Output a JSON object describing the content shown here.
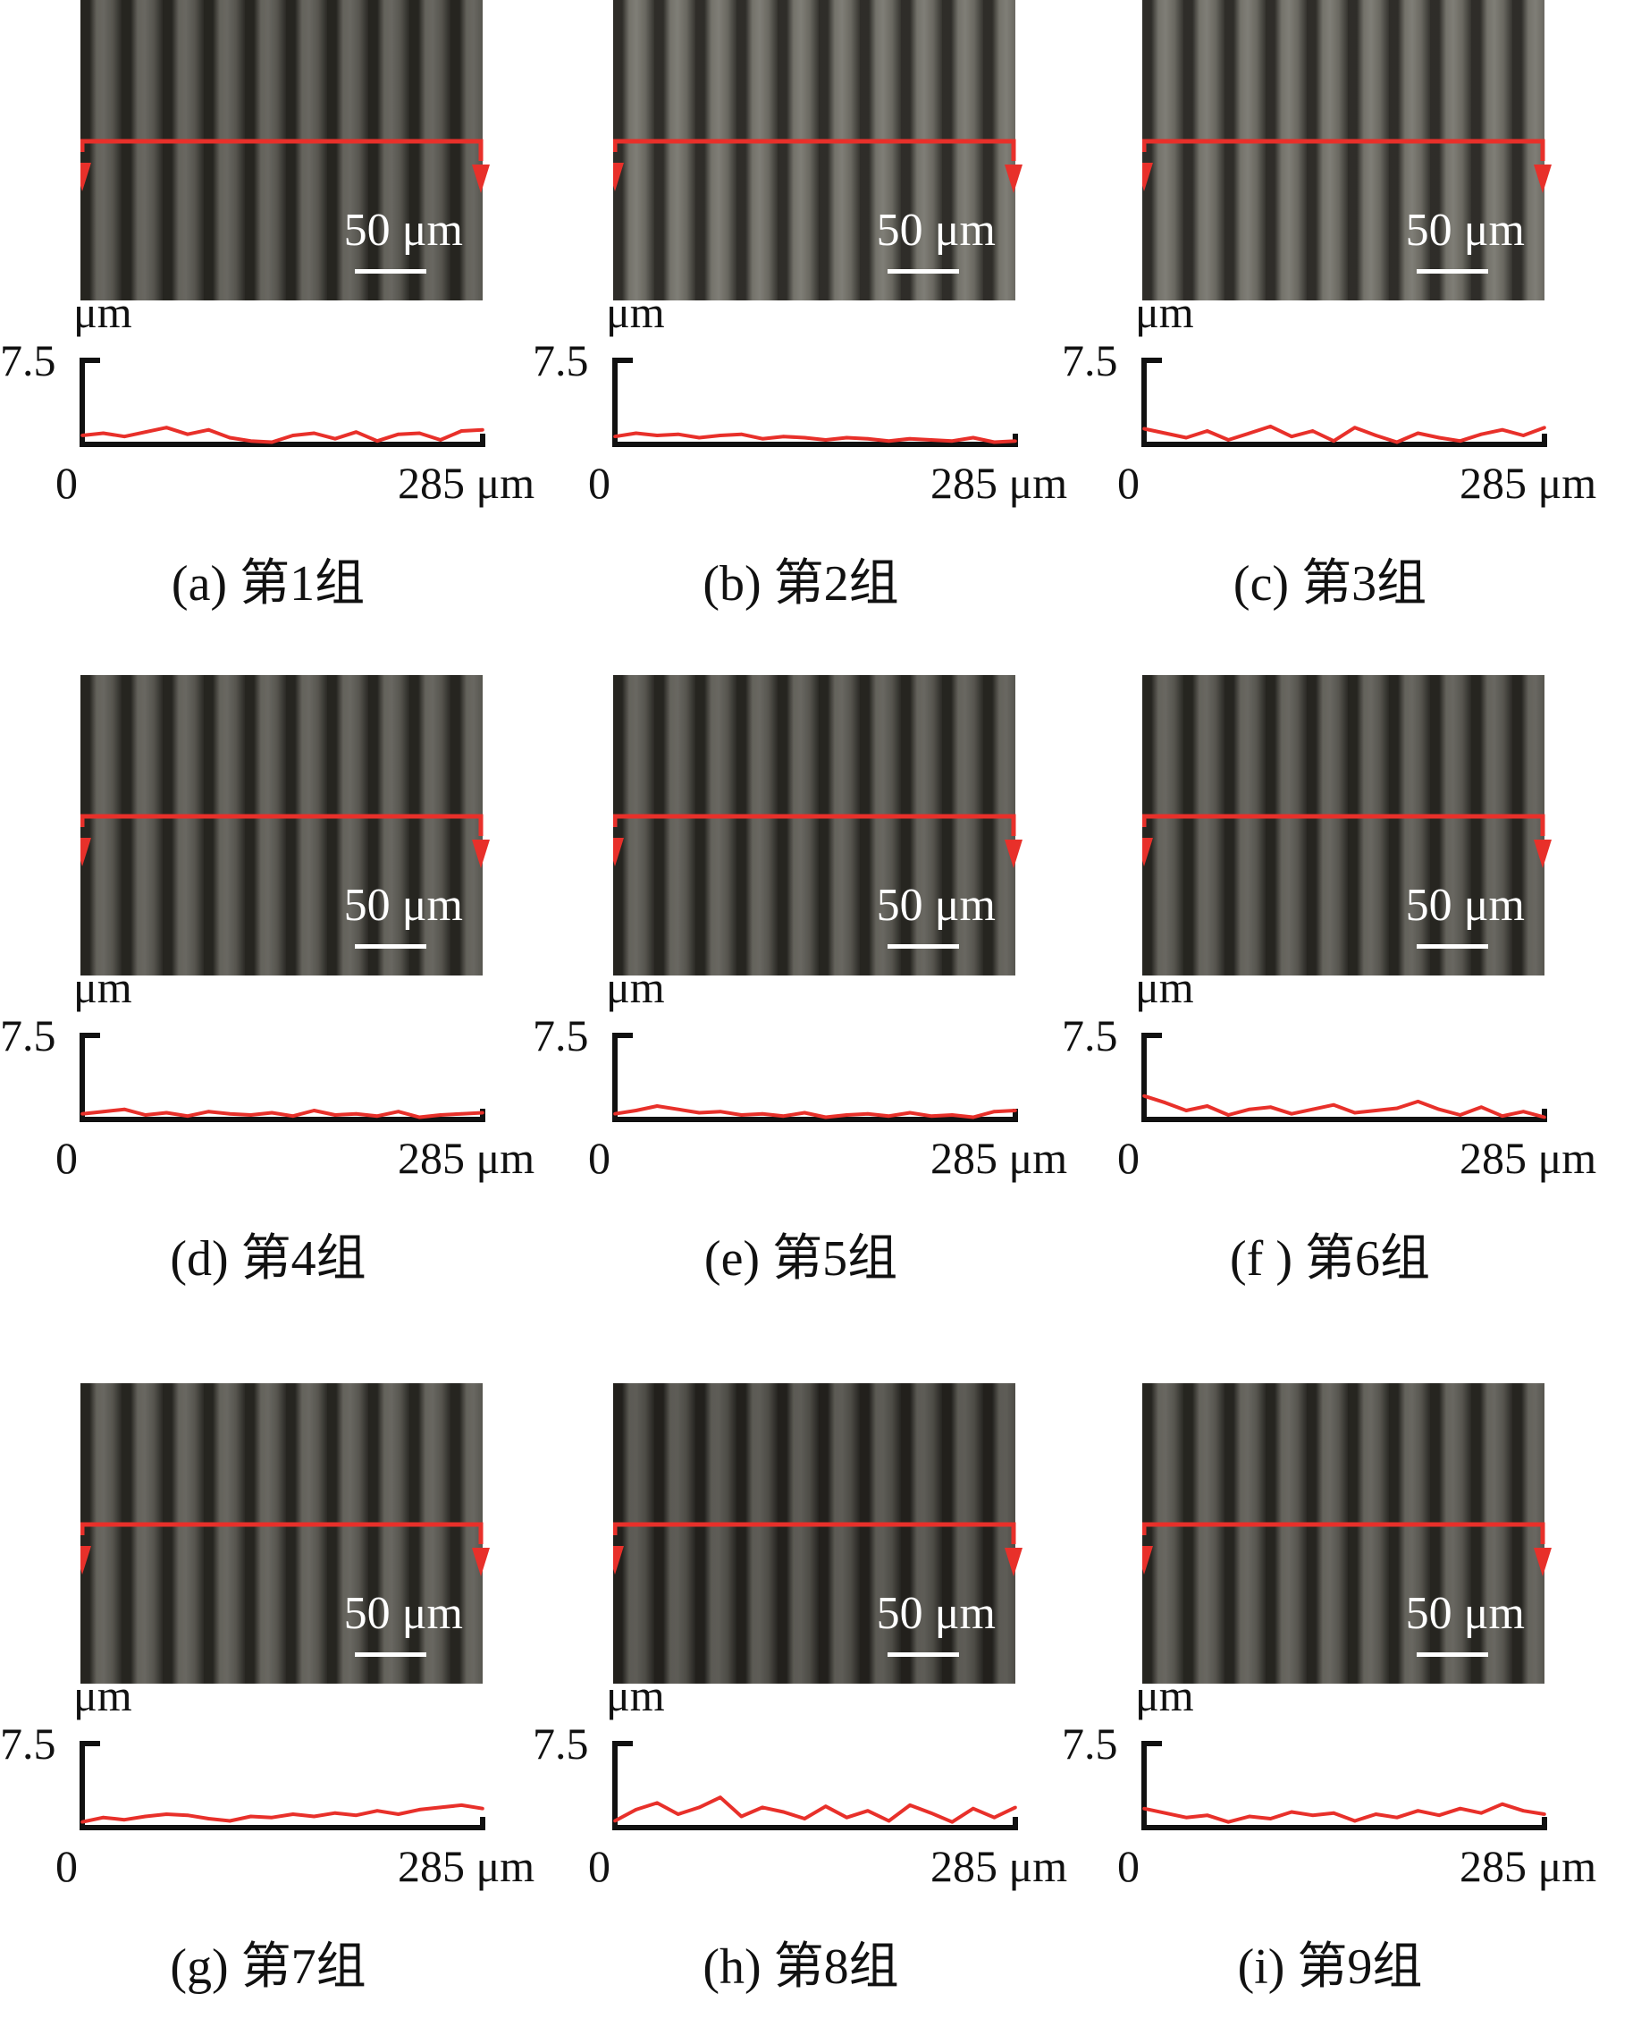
{
  "colors": {
    "profile_line": "#e8302a",
    "scan_arrow": "#e8302a",
    "axis": "#111111",
    "scale": "#ffffff"
  },
  "scale_bar_label": "50 μm",
  "chart_data": [
    {
      "type": "line",
      "panel": "a",
      "caption": "(a) 第1组",
      "ylabel_unit": "μm",
      "y_tick": "7.5",
      "x_ticks": [
        "0",
        "285 μm"
      ],
      "xlim": [
        0,
        285
      ],
      "ylim": [
        0,
        7.5
      ],
      "image_tone": "normal",
      "x": [
        0,
        15,
        30,
        45,
        60,
        75,
        90,
        105,
        120,
        135,
        150,
        165,
        180,
        195,
        210,
        225,
        240,
        255,
        270,
        285
      ],
      "y": [
        0.8,
        1.0,
        0.7,
        1.1,
        1.5,
        0.9,
        1.3,
        0.6,
        0.3,
        0.2,
        0.8,
        1.0,
        0.5,
        1.1,
        0.3,
        0.9,
        1.0,
        0.4,
        1.2,
        1.3
      ]
    },
    {
      "type": "line",
      "panel": "b",
      "caption": "(b) 第2组",
      "ylabel_unit": "μm",
      "y_tick": "7.5",
      "x_ticks": [
        "0",
        "285 μm"
      ],
      "xlim": [
        0,
        285
      ],
      "ylim": [
        0,
        7.5
      ],
      "image_tone": "light",
      "x": [
        0,
        15,
        30,
        45,
        60,
        75,
        90,
        105,
        120,
        135,
        150,
        165,
        180,
        195,
        210,
        225,
        240,
        255,
        270,
        285
      ],
      "y": [
        0.7,
        1.0,
        0.8,
        0.9,
        0.6,
        0.8,
        0.9,
        0.5,
        0.7,
        0.6,
        0.4,
        0.6,
        0.5,
        0.3,
        0.5,
        0.4,
        0.3,
        0.6,
        0.2,
        0.3
      ]
    },
    {
      "type": "line",
      "panel": "c",
      "caption": "(c) 第3组",
      "ylabel_unit": "μm",
      "y_tick": "7.5",
      "x_ticks": [
        "0",
        "285 μm"
      ],
      "xlim": [
        0,
        285
      ],
      "ylim": [
        0,
        7.5
      ],
      "image_tone": "light",
      "x": [
        0,
        15,
        30,
        45,
        60,
        75,
        90,
        105,
        120,
        135,
        150,
        165,
        180,
        195,
        210,
        225,
        240,
        255,
        270,
        285
      ],
      "y": [
        1.4,
        1.0,
        0.6,
        1.2,
        0.4,
        1.0,
        1.6,
        0.7,
        1.2,
        0.3,
        1.5,
        0.8,
        0.2,
        1.0,
        0.6,
        0.3,
        0.9,
        1.3,
        0.8,
        1.5
      ]
    },
    {
      "type": "line",
      "panel": "d",
      "caption": "(d) 第4组",
      "ylabel_unit": "μm",
      "y_tick": "7.5",
      "x_ticks": [
        "0",
        "285 μm"
      ],
      "xlim": [
        0,
        285
      ],
      "ylim": [
        0,
        7.5
      ],
      "image_tone": "normal",
      "x": [
        0,
        15,
        30,
        45,
        60,
        75,
        90,
        105,
        120,
        135,
        150,
        165,
        180,
        195,
        210,
        225,
        240,
        255,
        270,
        285
      ],
      "y": [
        0.5,
        0.7,
        0.9,
        0.4,
        0.6,
        0.3,
        0.7,
        0.5,
        0.4,
        0.6,
        0.3,
        0.8,
        0.4,
        0.5,
        0.3,
        0.7,
        0.2,
        0.4,
        0.5,
        0.6
      ]
    },
    {
      "type": "line",
      "panel": "e",
      "caption": "(e) 第5组",
      "ylabel_unit": "μm",
      "y_tick": "7.5",
      "x_ticks": [
        "0",
        "285 μm"
      ],
      "xlim": [
        0,
        285
      ],
      "ylim": [
        0,
        7.5
      ],
      "image_tone": "normal",
      "x": [
        0,
        15,
        30,
        45,
        60,
        75,
        90,
        105,
        120,
        135,
        150,
        165,
        180,
        195,
        210,
        225,
        240,
        255,
        270,
        285
      ],
      "y": [
        0.5,
        0.8,
        1.2,
        0.9,
        0.6,
        0.7,
        0.4,
        0.5,
        0.3,
        0.6,
        0.2,
        0.4,
        0.5,
        0.3,
        0.6,
        0.3,
        0.4,
        0.2,
        0.7,
        0.8
      ]
    },
    {
      "type": "line",
      "panel": "f",
      "caption": "(f ) 第6组",
      "ylabel_unit": "μm",
      "y_tick": "7.5",
      "x_ticks": [
        "0",
        "285 μm"
      ],
      "xlim": [
        0,
        285
      ],
      "ylim": [
        0,
        7.5
      ],
      "image_tone": "normal",
      "x": [
        0,
        15,
        30,
        45,
        60,
        75,
        90,
        105,
        120,
        135,
        150,
        165,
        180,
        195,
        210,
        225,
        240,
        255,
        270,
        285
      ],
      "y": [
        2.1,
        1.5,
        0.8,
        1.2,
        0.4,
        0.9,
        1.1,
        0.5,
        0.9,
        1.3,
        0.6,
        0.8,
        1.0,
        1.6,
        0.9,
        0.4,
        1.1,
        0.3,
        0.7,
        0.2
      ]
    },
    {
      "type": "line",
      "panel": "g",
      "caption": "(g) 第7组",
      "ylabel_unit": "μm",
      "y_tick": "7.5",
      "x_ticks": [
        "0",
        "285 μm"
      ],
      "xlim": [
        0,
        285
      ],
      "ylim": [
        0,
        7.5
      ],
      "image_tone": "normal",
      "x": [
        0,
        15,
        30,
        45,
        60,
        75,
        90,
        105,
        120,
        135,
        150,
        165,
        180,
        195,
        210,
        225,
        240,
        255,
        270,
        285
      ],
      "y": [
        0.5,
        0.9,
        0.7,
        1.0,
        1.2,
        1.1,
        0.8,
        0.6,
        1.0,
        0.9,
        1.2,
        1.0,
        1.3,
        1.1,
        1.5,
        1.2,
        1.6,
        1.8,
        2.0,
        1.7
      ]
    },
    {
      "type": "line",
      "panel": "h",
      "caption": "(h) 第8组",
      "ylabel_unit": "μm",
      "y_tick": "7.5",
      "x_ticks": [
        "0",
        "285 μm"
      ],
      "xlim": [
        0,
        285
      ],
      "ylim": [
        0,
        7.5
      ],
      "image_tone": "dark",
      "x": [
        0,
        15,
        30,
        45,
        60,
        75,
        90,
        105,
        120,
        135,
        150,
        165,
        180,
        195,
        210,
        225,
        240,
        255,
        270,
        285
      ],
      "y": [
        0.6,
        1.6,
        2.2,
        1.2,
        1.8,
        2.7,
        1.0,
        1.8,
        1.4,
        0.8,
        1.9,
        0.9,
        1.5,
        0.6,
        2.0,
        1.3,
        0.5,
        1.7,
        0.9,
        1.8
      ]
    },
    {
      "type": "line",
      "panel": "i",
      "caption": "(i) 第9组",
      "ylabel_unit": "μm",
      "y_tick": "7.5",
      "x_ticks": [
        "0",
        "285 μm"
      ],
      "xlim": [
        0,
        285
      ],
      "ylim": [
        0,
        7.5
      ],
      "image_tone": "normal",
      "x": [
        0,
        15,
        30,
        45,
        60,
        75,
        90,
        105,
        120,
        135,
        150,
        165,
        180,
        195,
        210,
        225,
        240,
        255,
        270,
        285
      ],
      "y": [
        1.7,
        1.3,
        0.9,
        1.1,
        0.5,
        1.0,
        0.8,
        1.4,
        1.1,
        1.3,
        0.6,
        1.2,
        0.9,
        1.5,
        1.1,
        1.7,
        1.3,
        2.1,
        1.5,
        1.2
      ]
    }
  ]
}
